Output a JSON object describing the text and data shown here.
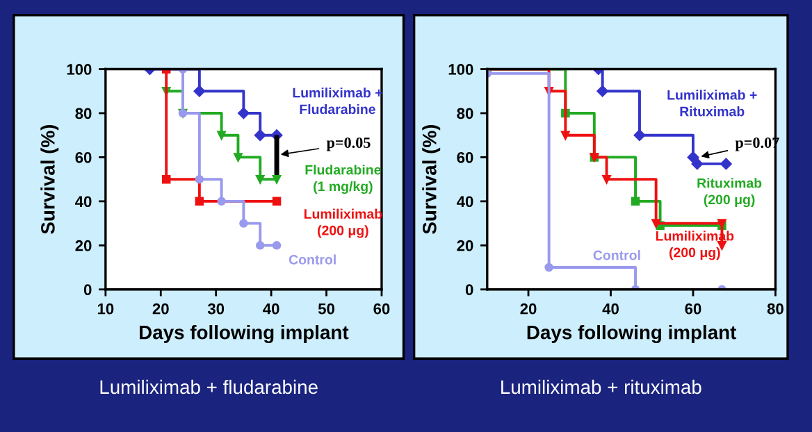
{
  "chart_data": [
    {
      "type": "step",
      "title": "Lumiliximab + fludarabine",
      "xlabel": "Days following implant",
      "ylabel": "Survival (%)",
      "xlim": [
        10,
        60
      ],
      "xticks": [
        10,
        20,
        30,
        40,
        50,
        60
      ],
      "ylim": [
        0,
        100
      ],
      "yticks": [
        0,
        20,
        40,
        60,
        80,
        100
      ],
      "grid": false,
      "legend": false,
      "annotations": [
        "p=0.05"
      ],
      "series": [
        {
          "name": "Lumiliximab +\nFludarabine",
          "color": "#3333cc",
          "marker": "diamond",
          "x": [
            18,
            27,
            35,
            38,
            41
          ],
          "values": [
            100,
            90,
            80,
            70,
            70
          ]
        },
        {
          "name": "Fludarabine\n(1 mg/kg)",
          "color": "#22aa22",
          "marker": "triangle",
          "x": [
            21,
            24,
            31,
            34,
            38,
            41
          ],
          "values": [
            90,
            80,
            70,
            60,
            50,
            50
          ]
        },
        {
          "name": "Lumiliximab\n(200 μg)",
          "color": "#ee1111",
          "marker": "square",
          "x": [
            21,
            21,
            27,
            41
          ],
          "values": [
            100,
            50,
            40,
            40
          ]
        },
        {
          "name": "Control",
          "color": "#9999ee",
          "marker": "circle",
          "x": [
            24,
            24,
            27,
            31,
            35,
            38,
            41
          ],
          "values": [
            100,
            80,
            50,
            40,
            30,
            20,
            20
          ]
        }
      ]
    },
    {
      "type": "step",
      "title": "Lumiliximab + rituximab",
      "xlabel": "Days following implant",
      "ylabel": "Survival (%)",
      "xlim": [
        10,
        80
      ],
      "xticks": [
        20,
        40,
        60,
        80
      ],
      "ylim": [
        0,
        100
      ],
      "yticks": [
        0,
        20,
        40,
        60,
        80,
        100
      ],
      "grid": false,
      "legend": false,
      "annotations": [
        {
          "text": "p=0.07",
          "x": 61,
          "y": 60
        }
      ],
      "series": [
        {
          "name": "Lumiliximab +\nRituximab",
          "color": "#3333cc",
          "marker": "diamond",
          "x": [
            37,
            38,
            47,
            60,
            61,
            68
          ],
          "values": [
            100,
            90,
            70,
            60,
            57,
            57
          ]
        },
        {
          "name": "Rituximab\n(200 μg)",
          "color": "#22aa22",
          "marker": "square",
          "x": [
            10,
            29,
            36,
            46,
            52,
            67
          ],
          "values": [
            100,
            80,
            60,
            40,
            29,
            29
          ]
        },
        {
          "name": "Lumiliximab\n(200 μg)",
          "color": "#ee1111",
          "marker": "triangle",
          "x": [
            10,
            25,
            29,
            36,
            39,
            51,
            67,
            67
          ],
          "values": [
            100,
            90,
            70,
            60,
            50,
            30,
            30,
            20
          ]
        },
        {
          "name": "Control",
          "color": "#9999ee",
          "marker": "circle",
          "x": [
            10,
            25,
            46,
            67
          ],
          "values": [
            98,
            10,
            0,
            0
          ]
        }
      ]
    }
  ]
}
